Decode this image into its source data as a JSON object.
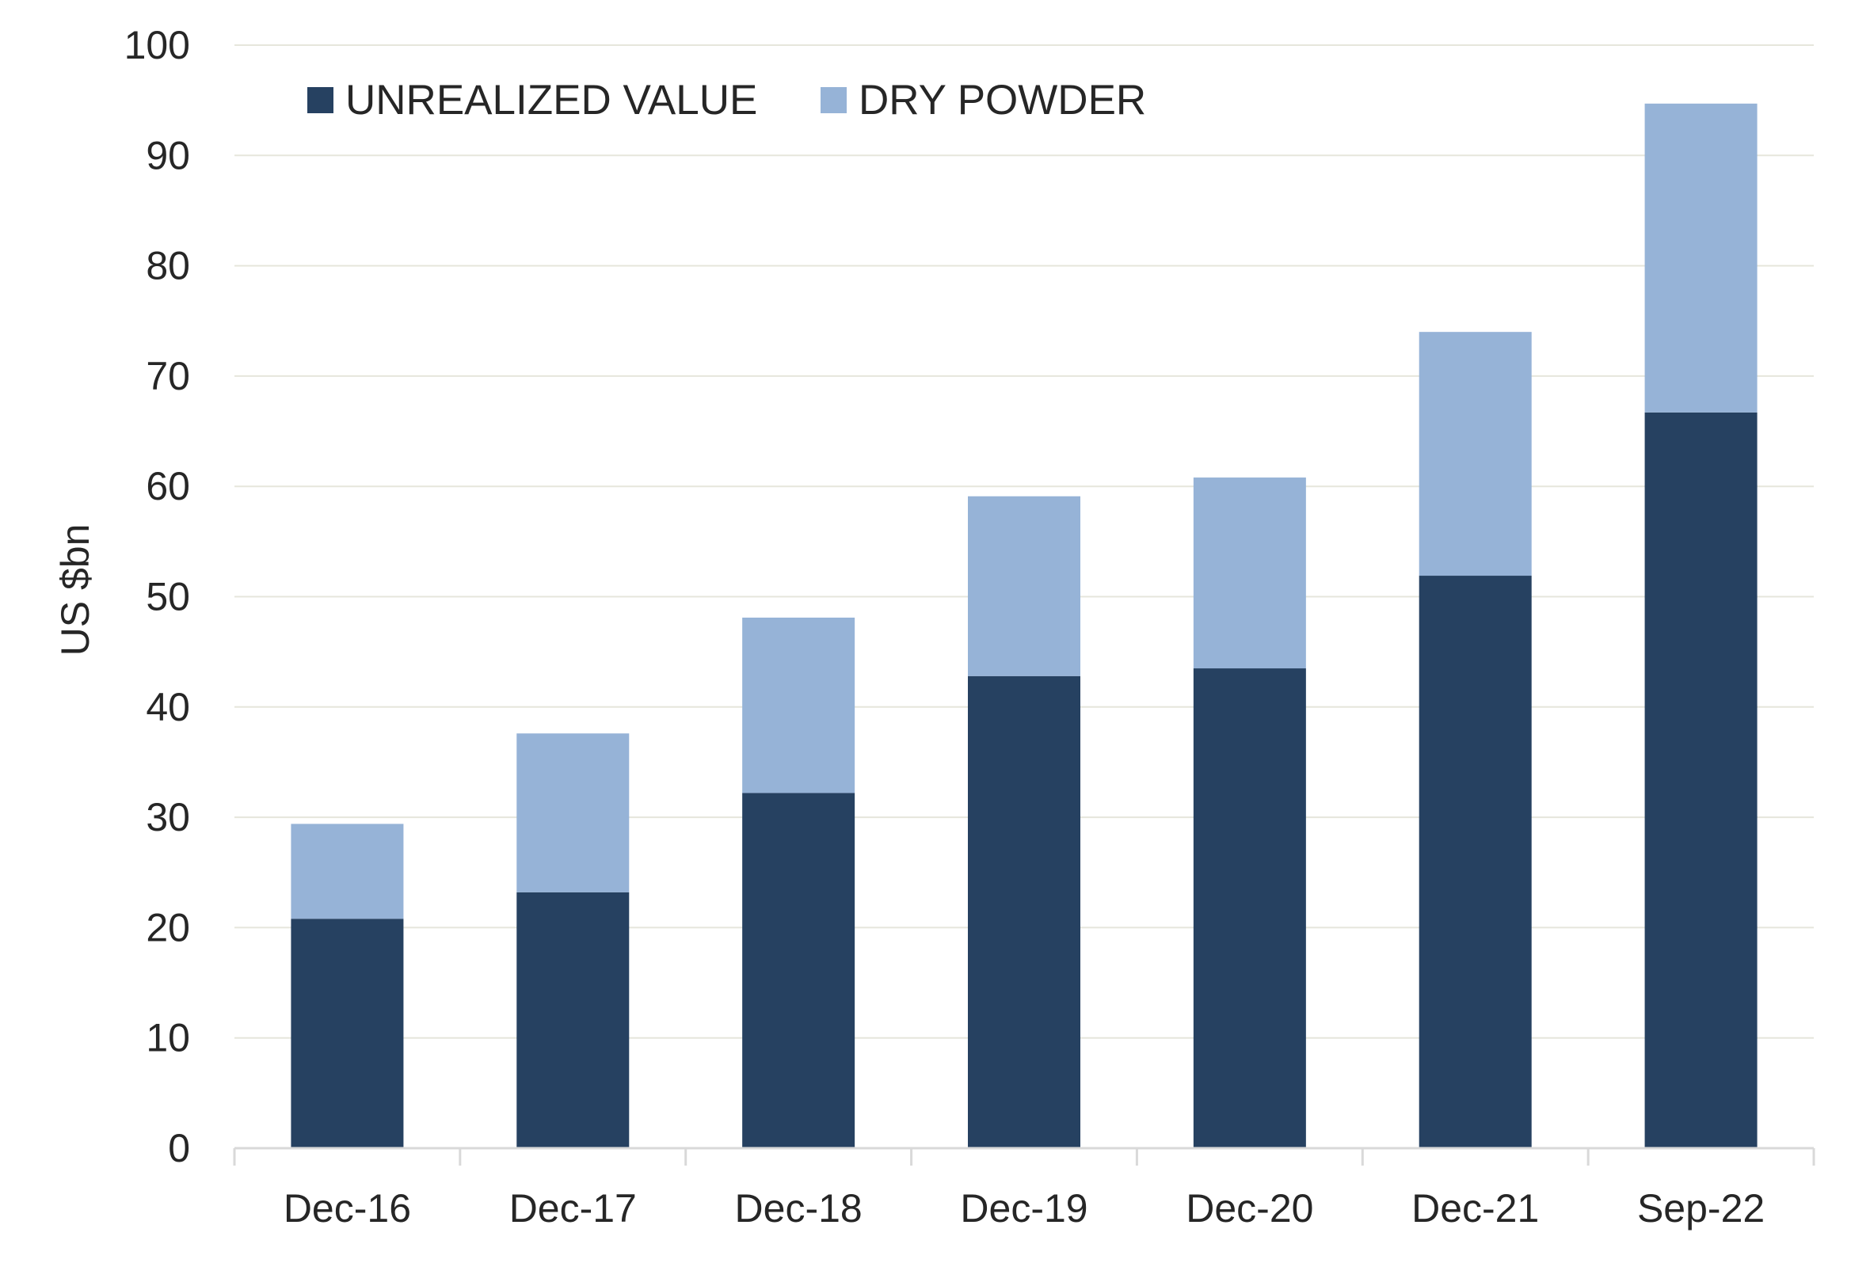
{
  "chart_data": {
    "type": "bar",
    "stacked": true,
    "categories": [
      "Dec-16",
      "Dec-17",
      "Dec-18",
      "Dec-19",
      "Dec-20",
      "Dec-21",
      "Sep-22"
    ],
    "series": [
      {
        "name": "UNREALIZED VALUE",
        "values": [
          20.8,
          23.2,
          32.2,
          42.8,
          43.5,
          51.9,
          66.7
        ],
        "color": "#264161"
      },
      {
        "name": "DRY POWDER",
        "values": [
          8.6,
          14.4,
          15.9,
          16.3,
          17.3,
          22.1,
          28.0
        ],
        "color": "#96b3d7"
      }
    ],
    "title": "",
    "xlabel": "",
    "ylabel": "US $bn",
    "ylim": [
      0,
      100
    ],
    "yticks": [
      0,
      10,
      20,
      30,
      40,
      50,
      60,
      70,
      80,
      90,
      100
    ],
    "grid": true,
    "legend": "top-left",
    "colors": {
      "grid": "#e6e6dc",
      "axis": "#d9d9d9",
      "text": "#262626"
    }
  }
}
